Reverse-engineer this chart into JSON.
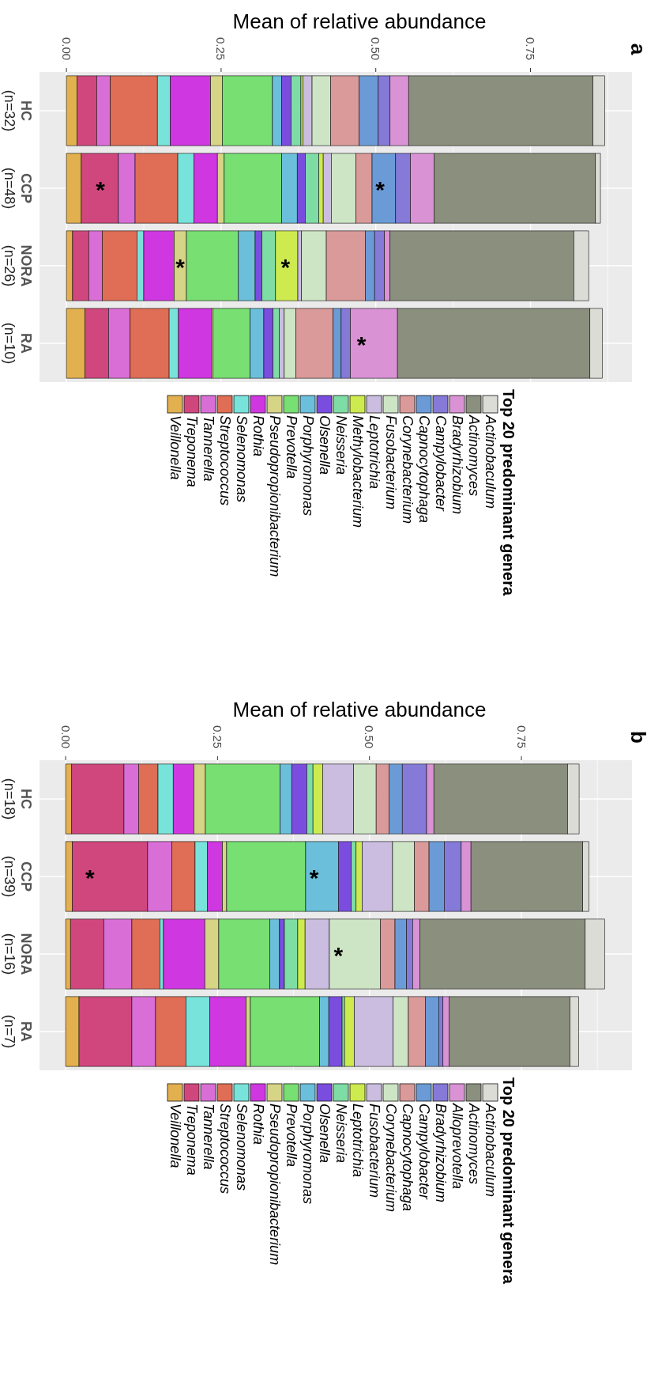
{
  "chart_data": [
    {
      "type": "bar",
      "orientation": "horizontal",
      "stacked": true,
      "xlabel": "Mean of relative abundance",
      "legend_title": "Top 20 predominant genera",
      "legend": "bottom",
      "grid": true,
      "categories": [
        "HC (n=32)",
        "CCP (n=48)",
        "NORA (n=26)",
        "RA (n=10)"
      ],
      "xlim": [
        -0.0435,
        0.914
      ],
      "xticks": [
        {
          "value": 0,
          "label": "0.00"
        },
        {
          "value": 0.25,
          "label": "0.25"
        },
        {
          "value": 0.5,
          "label": "0.50"
        },
        {
          "value": 0.75,
          "label": "0.75"
        }
      ],
      "annotations": [
        "a",
        {
          "text": "*",
          "x": 0.055,
          "y": "CCP (n=48)"
        },
        {
          "text": "*",
          "x": 0.507,
          "y": "CCP (n=48)"
        },
        {
          "text": "*",
          "x": 0.184,
          "y": "NORA (n=26)"
        },
        {
          "text": "*",
          "x": 0.354,
          "y": "NORA (n=26)"
        },
        {
          "text": "*",
          "x": 0.477,
          "y": "RA (n=10)"
        }
      ],
      "series": [
        {
          "name": "Veillonella",
          "color": "#e3b04f",
          "values": [
            0.017,
            0.024,
            0.01,
            0.03
          ]
        },
        {
          "name": "Treponema",
          "color": "#d0477e",
          "values": [
            0.032,
            0.06,
            0.026,
            0.038
          ]
        },
        {
          "name": "Tannerella",
          "color": "#d96fd6",
          "values": [
            0.022,
            0.027,
            0.022,
            0.035
          ]
        },
        {
          "name": "Streptococcus",
          "color": "#e06d55",
          "values": [
            0.076,
            0.069,
            0.056,
            0.063
          ]
        },
        {
          "name": "Selenomonas",
          "color": "#78e3da",
          "values": [
            0.021,
            0.026,
            0.011,
            0.015
          ]
        },
        {
          "name": "Rothia",
          "color": "#cf37e0",
          "values": [
            0.065,
            0.038,
            0.049,
            0.053
          ]
        },
        {
          "name": "Pseudopropionibacterium",
          "color": "#d6d485",
          "values": [
            0.019,
            0.011,
            0.02,
            0.003
          ]
        },
        {
          "name": "Prevotella",
          "color": "#78df72",
          "values": [
            0.081,
            0.093,
            0.084,
            0.06
          ]
        },
        {
          "name": "Porphyromonas",
          "color": "#6bbfda",
          "values": [
            0.015,
            0.025,
            0.027,
            0.022
          ]
        },
        {
          "name": "Olsenella",
          "color": "#7b4ddf",
          "values": [
            0.015,
            0.013,
            0.011,
            0.015
          ]
        },
        {
          "name": "Neisseria",
          "color": "#7edda4",
          "values": [
            0.016,
            0.022,
            0.022,
            0.01
          ]
        },
        {
          "name": "Methylobacterium",
          "color": "#cdeb4f",
          "values": [
            0.003,
            0.007,
            0.036,
            null
          ]
        },
        {
          "name": "Leptotrichia",
          "color": "#cbbde0",
          "values": [
            0.015,
            0.013,
            0.006,
            0.008
          ]
        },
        {
          "name": "Fusobacterium",
          "color": "#cde5c4",
          "values": [
            0.03,
            0.04,
            0.04,
            0.019
          ]
        },
        {
          "name": "Corynebacterium",
          "color": "#da9a9a",
          "values": [
            0.046,
            0.026,
            0.063,
            0.06
          ]
        },
        {
          "name": "Capnocytophaga",
          "color": "#6b9bd6",
          "values": [
            0.031,
            0.038,
            0.015,
            0.013
          ]
        },
        {
          "name": "Campylobacter",
          "color": "#857ad8",
          "values": [
            0.019,
            0.024,
            0.016,
            0.015
          ]
        },
        {
          "name": "Bradyrhizobium",
          "color": "#d993d4",
          "values": [
            0.03,
            0.038,
            0.009,
            0.076
          ]
        },
        {
          "name": "Actinomyces",
          "color": "#8b8f7e",
          "values": [
            0.298,
            0.261,
            0.297,
            0.311
          ]
        },
        {
          "name": "Actinobaculum",
          "color": "#dbdcd6",
          "values": [
            0.019,
            0.008,
            0.024,
            0.02
          ]
        }
      ]
    },
    {
      "type": "bar",
      "orientation": "horizontal",
      "stacked": true,
      "xlabel": "Mean of relative abundance",
      "legend_title": "Top 20 predominant genera",
      "legend": "bottom",
      "grid": true,
      "categories": [
        "HC (n=18)",
        "CCP (n=39)",
        "NORA (n=16)",
        "RA (n=7)"
      ],
      "xlim": [
        -0.043,
        0.932
      ],
      "xticks": [
        {
          "value": 0,
          "label": "0.00"
        },
        {
          "value": 0.25,
          "label": "0.25"
        },
        {
          "value": 0.5,
          "label": "0.50"
        },
        {
          "value": 0.75,
          "label": "0.75"
        }
      ],
      "annotations": [
        "b",
        {
          "text": "*",
          "x": 0.04,
          "y": "CCP (n=39)"
        },
        {
          "text": "*",
          "x": 0.409,
          "y": "CCP (n=39)"
        },
        {
          "text": "*",
          "x": 0.449,
          "y": "NORA (n=16)"
        }
      ],
      "series": [
        {
          "name": "Veillonella",
          "color": "#e3b04f",
          "values": [
            0.01,
            0.011,
            0.008,
            0.022
          ]
        },
        {
          "name": "Treponema",
          "color": "#d0477e",
          "values": [
            0.086,
            0.124,
            0.055,
            0.087
          ]
        },
        {
          "name": "Tannerella",
          "color": "#d96fd6",
          "values": [
            0.024,
            0.04,
            0.046,
            0.039
          ]
        },
        {
          "name": "Streptococcus",
          "color": "#e06d55",
          "values": [
            0.032,
            0.038,
            0.046,
            0.05
          ]
        },
        {
          "name": "Selenomonas",
          "color": "#78e3da",
          "values": [
            0.025,
            0.02,
            0.006,
            0.039
          ]
        },
        {
          "name": "Rothia",
          "color": "#cf37e0",
          "values": [
            0.034,
            0.025,
            0.068,
            0.06
          ]
        },
        {
          "name": "Pseudopropionibacterium",
          "color": "#d6d485",
          "values": [
            0.019,
            0.007,
            0.023,
            0.007
          ]
        },
        {
          "name": "Prevotella",
          "color": "#78df72",
          "values": [
            0.123,
            0.13,
            0.084,
            0.114
          ]
        },
        {
          "name": "Porphyromonas",
          "color": "#6bbfda",
          "values": [
            0.019,
            0.054,
            0.016,
            0.015
          ]
        },
        {
          "name": "Olsenella",
          "color": "#7b4ddf",
          "values": [
            0.025,
            0.021,
            0.008,
            0.022
          ]
        },
        {
          "name": "Neisseria",
          "color": "#7edda4",
          "values": [
            0.01,
            0.008,
            0.022,
            0.004
          ]
        },
        {
          "name": "Leptotrichia",
          "color": "#cdeb4f",
          "values": [
            0.016,
            0.01,
            0.012,
            0.016
          ]
        },
        {
          "name": "Fusobacterium",
          "color": "#cbbde0",
          "values": [
            0.051,
            0.05,
            0.04,
            0.064
          ]
        },
        {
          "name": "Corynebacterium",
          "color": "#cde5c4",
          "values": [
            0.037,
            0.036,
            0.084,
            0.025
          ]
        },
        {
          "name": "Capnocytophaga",
          "color": "#da9a9a",
          "values": [
            0.021,
            0.024,
            0.024,
            0.028
          ]
        },
        {
          "name": "Campylobacter",
          "color": "#6b9bd6",
          "values": [
            0.022,
            0.025,
            0.019,
            0.022
          ]
        },
        {
          "name": "Bradyrhizobium",
          "color": "#857ad8",
          "values": [
            0.04,
            0.028,
            0.01,
            0.007
          ]
        },
        {
          "name": "Alloprevotella",
          "color": "#d993d4",
          "values": [
            0.012,
            0.016,
            0.012,
            0.01
          ]
        },
        {
          "name": "Actinomyces",
          "color": "#8b8f7e",
          "values": [
            0.22,
            0.184,
            0.272,
            0.199
          ]
        },
        {
          "name": "Actinobaculum",
          "color": "#dbdcd6",
          "values": [
            0.019,
            0.01,
            0.032,
            0.014
          ]
        }
      ]
    }
  ]
}
